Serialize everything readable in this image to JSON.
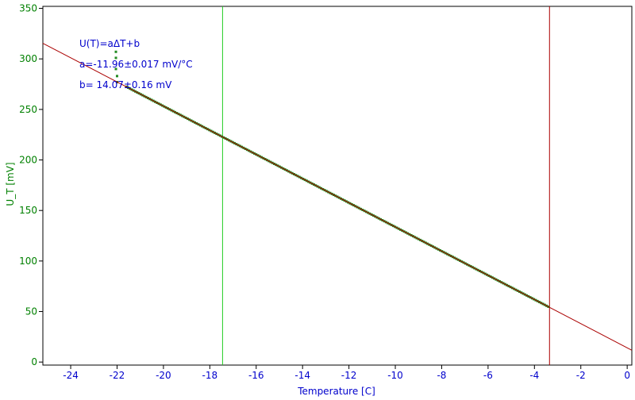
{
  "chart_data": {
    "type": "scatter",
    "xlabel": "Temperature [C]",
    "ylabel": "U_T [mV]",
    "xlim": [
      -25.2,
      0.2
    ],
    "ylim": [
      -3,
      352
    ],
    "x_ticks": [
      -24,
      -22,
      -20,
      -18,
      -16,
      -14,
      -12,
      -10,
      -8,
      -6,
      -4,
      -2,
      0
    ],
    "y_ticks": [
      0,
      50,
      100,
      150,
      200,
      250,
      300,
      350
    ],
    "grid": false,
    "annotations": [
      "U(T)=aΔT+b",
      "a=-11.96±0.017 mV/°C",
      "b= 14.07±0.16 mV"
    ],
    "fit": {
      "slope": -11.96,
      "intercept": 14.07,
      "x_range": [
        -25.2,
        0.2
      ]
    },
    "markers": [
      {
        "x": -17.45,
        "color": "#22cc22"
      },
      {
        "x": -3.35,
        "color": "#aa0000"
      }
    ],
    "series": [
      {
        "x_start": -21.6,
        "x_end": -3.4,
        "n_points": 235,
        "model_slope": -11.96,
        "model_intercept": 14.07,
        "outliers": [
          {
            "x": -22.05,
            "y": 307
          },
          {
            "x": -22.05,
            "y": 301
          },
          {
            "x": -22.05,
            "y": 290
          },
          {
            "x": -22.0,
            "y": 283
          },
          {
            "x": -22.0,
            "y": 277
          }
        ]
      }
    ],
    "colors": {
      "axis": "#000000",
      "x_text": "#0000cc",
      "y_text": "#008000",
      "data": "#228b22",
      "fit": "#aa0000",
      "annotation": "#0000cc"
    }
  }
}
